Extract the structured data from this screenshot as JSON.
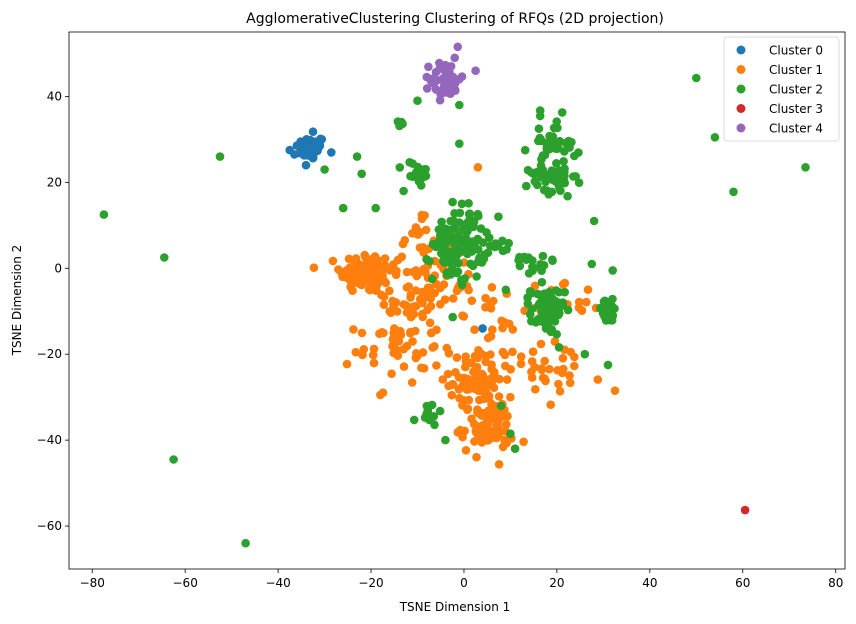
{
  "chart_data": {
    "type": "scatter",
    "title": "AgglomerativeClustering Clustering of RFQs (2D projection)",
    "xlabel": "TSNE Dimension 1",
    "ylabel": "TSNE Dimension 2",
    "xlim": [
      -85,
      82
    ],
    "ylim": [
      -70,
      55
    ],
    "xticks": [
      -80,
      -60,
      -40,
      -20,
      0,
      20,
      40,
      60,
      80
    ],
    "yticks": [
      -60,
      -40,
      -20,
      0,
      20,
      40
    ],
    "grid": false,
    "legend_position": "top-right",
    "series": [
      {
        "name": "Cluster 0",
        "color": "#1f77b4",
        "clusters": [
          {
            "cx": -33,
            "cy": 28,
            "sx": 1.6,
            "sy": 1.4,
            "n": 45
          }
        ],
        "points": [
          [
            -37.5,
            27.5
          ],
          [
            -32.5,
            31.8
          ],
          [
            -31,
            28.5
          ],
          [
            -36.5,
            26.5
          ],
          [
            -34,
            24
          ],
          [
            4,
            -14
          ]
        ]
      },
      {
        "name": "Cluster 1",
        "color": "#ff7f0e",
        "clusters": [
          {
            "cx": -21,
            "cy": -1,
            "sx": 2.8,
            "sy": 2.4,
            "n": 110
          },
          {
            "cx": -12,
            "cy": -8,
            "sx": 3.5,
            "sy": 5,
            "n": 45
          },
          {
            "cx": -5,
            "cy": -3,
            "sx": 3.5,
            "sy": 5,
            "n": 40
          },
          {
            "cx": -14,
            "cy": -19,
            "sx": 4.5,
            "sy": 4,
            "n": 40
          },
          {
            "cx": 3,
            "cy": -26,
            "sx": 3,
            "sy": 3,
            "n": 70
          },
          {
            "cx": 5,
            "cy": -37,
            "sx": 2.8,
            "sy": 3,
            "n": 80
          },
          {
            "cx": 8,
            "cy": -15,
            "sx": 5,
            "sy": 5,
            "n": 40
          },
          {
            "cx": 20,
            "cy": -25,
            "sx": 5,
            "sy": 4,
            "n": 28
          },
          {
            "cx": -9,
            "cy": 6,
            "sx": 3,
            "sy": 5,
            "n": 25
          },
          {
            "cx": 25,
            "cy": -7,
            "sx": 2,
            "sy": 2,
            "n": 10
          }
        ],
        "points": [
          [
            -18,
            -29.5
          ],
          [
            32.5,
            -28.5
          ],
          [
            3,
            23.5
          ],
          [
            -15,
            -14
          ],
          [
            10,
            -30
          ]
        ]
      },
      {
        "name": "Cluster 2",
        "color": "#2ca02c",
        "clusters": [
          {
            "cx": -1,
            "cy": 6,
            "sx": 2.8,
            "sy": 4.5,
            "n": 110
          },
          {
            "cx": 18,
            "cy": -10,
            "sx": 1.8,
            "sy": 2.8,
            "n": 70
          },
          {
            "cx": 31,
            "cy": -10,
            "sx": 1.3,
            "sy": 1.3,
            "n": 30
          },
          {
            "cx": 19,
            "cy": 29,
            "sx": 2.5,
            "sy": 3.2,
            "n": 45
          },
          {
            "cx": 19,
            "cy": 20,
            "sx": 2.6,
            "sy": 2,
            "n": 35
          },
          {
            "cx": -10,
            "cy": 22,
            "sx": 1.5,
            "sy": 1.5,
            "n": 22
          },
          {
            "cx": 14,
            "cy": 2,
            "sx": 3,
            "sy": 2,
            "n": 18
          },
          {
            "cx": -8,
            "cy": -34,
            "sx": 1.3,
            "sy": 1.2,
            "n": 12
          },
          {
            "cx": -13,
            "cy": 33.5,
            "sx": 0.8,
            "sy": 0.8,
            "n": 6
          },
          {
            "cx": 7,
            "cy": 6,
            "sx": 1.5,
            "sy": 1,
            "n": 8
          }
        ],
        "points": [
          [
            -77.5,
            12.5
          ],
          [
            -64.5,
            2.5
          ],
          [
            -52.5,
            26
          ],
          [
            -62.5,
            -44.5
          ],
          [
            -47,
            -64
          ],
          [
            50,
            44.3
          ],
          [
            54,
            30.5
          ],
          [
            58,
            17.8
          ],
          [
            73.5,
            23.5
          ],
          [
            -30,
            23
          ],
          [
            -23,
            26
          ],
          [
            -22,
            22
          ],
          [
            -19,
            14
          ],
          [
            -26,
            14
          ],
          [
            28,
            11
          ],
          [
            27.5,
            1
          ],
          [
            32,
            -0.5
          ],
          [
            26,
            -20
          ],
          [
            31,
            -22.5
          ],
          [
            11,
            -42
          ],
          [
            10,
            -38.5
          ],
          [
            -4,
            -40
          ],
          [
            -1,
            38
          ],
          [
            -10,
            39
          ],
          [
            -1,
            29
          ],
          [
            9,
            -5
          ],
          [
            8,
            -32
          ],
          [
            15,
            0
          ],
          [
            19,
            2
          ],
          [
            -13,
            18
          ]
        ]
      },
      {
        "name": "Cluster 3",
        "color": "#d62728",
        "clusters": [],
        "points": [
          [
            60.5,
            -56.3
          ]
        ]
      },
      {
        "name": "Cluster 4",
        "color": "#9467bd",
        "clusters": [
          {
            "cx": -4,
            "cy": 44,
            "sx": 1.6,
            "sy": 2.2,
            "n": 45
          }
        ],
        "points": [
          [
            2.5,
            46
          ],
          [
            -2,
            49
          ],
          [
            -8,
            44.5
          ],
          [
            -5,
            40.5
          ]
        ]
      }
    ]
  }
}
